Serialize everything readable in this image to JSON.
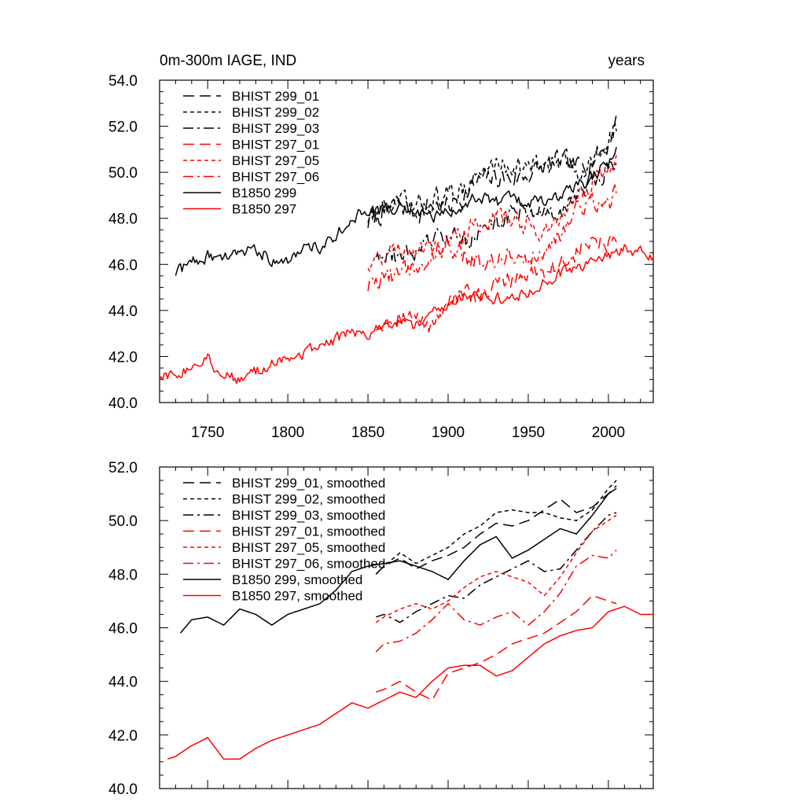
{
  "chart_data": [
    {
      "type": "line",
      "title": "0m-300m IAGE, IND",
      "units": "years",
      "xlim": [
        1720,
        2028
      ],
      "ylim": [
        40,
        54
      ],
      "xticks": [
        1750,
        1800,
        1850,
        1900,
        1950,
        2000
      ],
      "yticks": [
        40,
        42,
        44,
        46,
        48,
        50,
        52,
        54
      ],
      "ytick_labels": [
        "40.0",
        "42.0",
        "44.0",
        "46.0",
        "48.0",
        "50.0",
        "52.0",
        "54.0"
      ],
      "legend_position": "top-left",
      "series": [
        {
          "name": "BHIST 299_01",
          "color": "#000000",
          "dash": "long-dash",
          "noise": 0.75,
          "x": [
            1850,
            1860,
            1870,
            1880,
            1890,
            1900,
            1910,
            1920,
            1930,
            1940,
            1950,
            1960,
            1970,
            1980,
            1990,
            2000,
            2005
          ],
          "y": [
            47.8,
            48.3,
            48.6,
            48.2,
            48.6,
            48.5,
            49.0,
            49.6,
            49.8,
            49.7,
            49.9,
            50.2,
            50.5,
            50.2,
            50.6,
            51.2,
            52.3
          ]
        },
        {
          "name": "BHIST 299_02",
          "color": "#000000",
          "dash": "short-dash",
          "noise": 0.75,
          "x": [
            1850,
            1860,
            1870,
            1880,
            1890,
            1900,
            1910,
            1920,
            1930,
            1940,
            1950,
            1960,
            1970,
            1980,
            1990,
            2000,
            2005
          ],
          "y": [
            48.0,
            48.4,
            48.7,
            48.4,
            48.8,
            49.0,
            49.4,
            49.9,
            50.4,
            50.3,
            50.2,
            50.4,
            50.4,
            50.1,
            50.5,
            51.1,
            52.0
          ]
        },
        {
          "name": "BHIST 299_03",
          "color": "#000000",
          "dash": "dash-dot",
          "noise": 0.7,
          "x": [
            1855,
            1860,
            1870,
            1880,
            1890,
            1900,
            1910,
            1920,
            1930,
            1940,
            1950,
            1960,
            1970,
            1980,
            1990,
            2000,
            2005
          ],
          "y": [
            46.5,
            46.6,
            46.3,
            46.6,
            47.0,
            47.2,
            47.0,
            47.5,
            47.8,
            48.2,
            48.4,
            48.1,
            48.2,
            48.9,
            49.6,
            50.2,
            50.6
          ]
        },
        {
          "name": "BHIST 297_01",
          "color": "#ff0000",
          "dash": "long-dash",
          "noise": 0.65,
          "x": [
            1855,
            1860,
            1870,
            1880,
            1890,
            1900,
            1910,
            1920,
            1930,
            1940,
            1950,
            1960,
            1970,
            1980,
            1990,
            2000,
            2005
          ],
          "y": [
            43.3,
            43.6,
            43.9,
            43.6,
            43.3,
            44.5,
            44.7,
            44.5,
            45.1,
            45.4,
            45.6,
            45.8,
            46.0,
            46.5,
            47.0,
            46.8,
            46.8
          ]
        },
        {
          "name": "BHIST 297_05",
          "color": "#ff0000",
          "dash": "short-dash",
          "noise": 0.7,
          "x": [
            1850,
            1860,
            1870,
            1880,
            1890,
            1900,
            1910,
            1920,
            1930,
            1940,
            1950,
            1960,
            1970,
            1980,
            1990,
            2000,
            2005
          ],
          "y": [
            46.0,
            46.4,
            46.7,
            46.8,
            46.6,
            46.9,
            47.4,
            47.8,
            48.0,
            47.9,
            47.7,
            47.4,
            48.0,
            48.8,
            49.5,
            50.2,
            50.4
          ]
        },
        {
          "name": "BHIST 297_06",
          "color": "#ff0000",
          "dash": "dash-dot",
          "noise": 0.7,
          "x": [
            1850,
            1860,
            1870,
            1880,
            1890,
            1900,
            1910,
            1920,
            1930,
            1940,
            1950,
            1960,
            1970,
            1980,
            1990,
            2000,
            2005
          ],
          "y": [
            45.0,
            45.4,
            45.6,
            45.9,
            46.3,
            46.9,
            46.4,
            46.1,
            46.3,
            46.6,
            46.2,
            46.7,
            47.4,
            48.3,
            48.6,
            48.7,
            49.2
          ]
        },
        {
          "name": "B1850 299",
          "color": "#000000",
          "dash": "solid",
          "noise": 0.45,
          "x": [
            1730,
            1740,
            1750,
            1760,
            1770,
            1780,
            1790,
            1800,
            1810,
            1820,
            1830,
            1840,
            1850,
            1860,
            1870,
            1880,
            1890,
            1900,
            1910,
            1920,
            1930,
            1940,
            1950,
            1960,
            1970,
            1980,
            1990,
            2000,
            2005
          ],
          "y": [
            45.6,
            46.1,
            46.4,
            46.2,
            46.4,
            46.6,
            46.3,
            46.3,
            46.6,
            46.8,
            47.3,
            48.1,
            48.2,
            48.3,
            48.5,
            48.3,
            48.1,
            48.2,
            48.6,
            48.9,
            48.7,
            48.8,
            48.6,
            48.8,
            49.0,
            49.3,
            49.8,
            50.4,
            51.0
          ]
        },
        {
          "name": "B1850 297",
          "color": "#ff0000",
          "dash": "solid",
          "noise": 0.4,
          "x": [
            1720,
            1730,
            1740,
            1750,
            1760,
            1770,
            1780,
            1790,
            1800,
            1810,
            1820,
            1830,
            1840,
            1850,
            1860,
            1870,
            1880,
            1890,
            1900,
            1910,
            1920,
            1930,
            1940,
            1950,
            1960,
            1970,
            1980,
            1990,
            2000,
            2010,
            2020,
            2028
          ],
          "y": [
            41.1,
            41.2,
            41.6,
            41.9,
            41.2,
            41.0,
            41.3,
            41.7,
            41.9,
            42.2,
            42.4,
            42.7,
            43.1,
            43.0,
            43.3,
            43.5,
            43.3,
            43.9,
            44.4,
            44.6,
            44.7,
            44.5,
            44.5,
            44.8,
            45.3,
            45.6,
            45.8,
            46.0,
            46.4,
            46.7,
            46.5,
            46.2
          ]
        }
      ]
    },
    {
      "type": "line",
      "xlim": [
        1720,
        2028
      ],
      "ylim": [
        40,
        52
      ],
      "xticks": [
        1750,
        1800,
        1850,
        1900,
        1950,
        2000
      ],
      "yticks": [
        40,
        42,
        44,
        46,
        48,
        50,
        52
      ],
      "ytick_labels": [
        "40.0",
        "42.0",
        "44.0",
        "46.0",
        "48.0",
        "50.0",
        "52.0"
      ],
      "legend_position": "top-left",
      "series": [
        {
          "name": "BHIST 299_01, smoothed",
          "color": "#000000",
          "dash": "long-dash",
          "x": [
            1855,
            1860,
            1870,
            1880,
            1890,
            1900,
            1910,
            1920,
            1930,
            1940,
            1950,
            1960,
            1970,
            1980,
            1990,
            2000,
            2005
          ],
          "y": [
            48.0,
            48.3,
            48.6,
            48.2,
            48.5,
            48.7,
            49.0,
            49.5,
            49.9,
            49.8,
            50.0,
            50.4,
            50.8,
            50.3,
            50.5,
            51.0,
            51.3
          ]
        },
        {
          "name": "BHIST 299_02, smoothed",
          "color": "#000000",
          "dash": "short-dash",
          "x": [
            1855,
            1860,
            1870,
            1880,
            1890,
            1900,
            1910,
            1920,
            1930,
            1940,
            1950,
            1960,
            1970,
            1980,
            1990,
            2000,
            2005
          ],
          "y": [
            48.0,
            48.3,
            48.8,
            48.4,
            48.7,
            49.0,
            49.5,
            49.8,
            50.3,
            50.4,
            50.3,
            50.3,
            50.1,
            50.0,
            50.4,
            51.2,
            51.5
          ]
        },
        {
          "name": "BHIST 299_03, smoothed",
          "color": "#000000",
          "dash": "dash-dot",
          "x": [
            1855,
            1860,
            1870,
            1880,
            1890,
            1900,
            1910,
            1920,
            1930,
            1940,
            1950,
            1960,
            1970,
            1980,
            1990,
            2000,
            2005
          ],
          "y": [
            46.4,
            46.5,
            46.2,
            46.6,
            46.9,
            47.2,
            47.1,
            47.6,
            47.9,
            48.2,
            48.5,
            48.1,
            48.2,
            48.9,
            49.6,
            50.2,
            50.3
          ]
        },
        {
          "name": "BHIST 297_01, smoothed",
          "color": "#ff0000",
          "dash": "long-dash",
          "x": [
            1855,
            1860,
            1870,
            1880,
            1890,
            1900,
            1910,
            1920,
            1930,
            1940,
            1950,
            1960,
            1970,
            1980,
            1990,
            2000,
            2005
          ],
          "y": [
            43.6,
            43.7,
            44.0,
            43.6,
            43.3,
            44.3,
            44.5,
            44.7,
            45.0,
            45.4,
            45.6,
            45.8,
            46.2,
            46.6,
            47.2,
            47.0,
            46.9
          ]
        },
        {
          "name": "BHIST 297_05, smoothed",
          "color": "#ff0000",
          "dash": "short-dash",
          "x": [
            1855,
            1860,
            1870,
            1880,
            1890,
            1900,
            1910,
            1920,
            1930,
            1940,
            1950,
            1960,
            1970,
            1980,
            1990,
            2000,
            2005
          ],
          "y": [
            46.2,
            46.4,
            46.7,
            46.9,
            46.7,
            47.0,
            47.5,
            47.9,
            48.1,
            47.9,
            47.7,
            47.2,
            47.9,
            48.8,
            49.6,
            50.0,
            50.2
          ]
        },
        {
          "name": "BHIST 297_06, smoothed",
          "color": "#ff0000",
          "dash": "dash-dot",
          "x": [
            1855,
            1860,
            1870,
            1880,
            1890,
            1900,
            1910,
            1920,
            1930,
            1940,
            1950,
            1960,
            1970,
            1980,
            1990,
            2000,
            2005
          ],
          "y": [
            45.1,
            45.4,
            45.5,
            45.8,
            46.3,
            46.9,
            46.3,
            46.1,
            46.4,
            46.6,
            46.1,
            46.6,
            47.3,
            48.3,
            48.7,
            48.6,
            48.9
          ]
        },
        {
          "name": "B1850 299, smoothed",
          "color": "#000000",
          "dash": "solid",
          "x": [
            1733,
            1740,
            1750,
            1760,
            1770,
            1780,
            1790,
            1800,
            1810,
            1820,
            1830,
            1840,
            1850,
            1860,
            1870,
            1880,
            1890,
            1900,
            1910,
            1920,
            1930,
            1940,
            1950,
            1960,
            1970,
            1980,
            1990,
            2000,
            2005
          ],
          "y": [
            45.8,
            46.3,
            46.4,
            46.1,
            46.7,
            46.5,
            46.1,
            46.5,
            46.7,
            46.9,
            47.4,
            48.1,
            48.3,
            48.4,
            48.5,
            48.3,
            48.1,
            47.8,
            48.5,
            49.1,
            49.4,
            48.6,
            48.9,
            49.3,
            49.7,
            49.5,
            50.2,
            51.0,
            51.2
          ]
        },
        {
          "name": "B1850 297, smoothed",
          "color": "#ff0000",
          "dash": "solid",
          "x": [
            1725,
            1730,
            1740,
            1750,
            1760,
            1770,
            1780,
            1790,
            1800,
            1810,
            1820,
            1830,
            1840,
            1850,
            1860,
            1870,
            1880,
            1890,
            1900,
            1910,
            1920,
            1930,
            1940,
            1950,
            1960,
            1970,
            1980,
            1990,
            2000,
            2010,
            2020,
            2028
          ],
          "y": [
            41.1,
            41.2,
            41.6,
            41.9,
            41.1,
            41.1,
            41.5,
            41.8,
            42.0,
            42.2,
            42.4,
            42.8,
            43.2,
            43.0,
            43.3,
            43.6,
            43.4,
            44.0,
            44.5,
            44.6,
            44.6,
            44.2,
            44.4,
            44.9,
            45.4,
            45.7,
            45.9,
            46.0,
            46.6,
            46.8,
            46.5,
            46.5
          ]
        }
      ]
    }
  ]
}
